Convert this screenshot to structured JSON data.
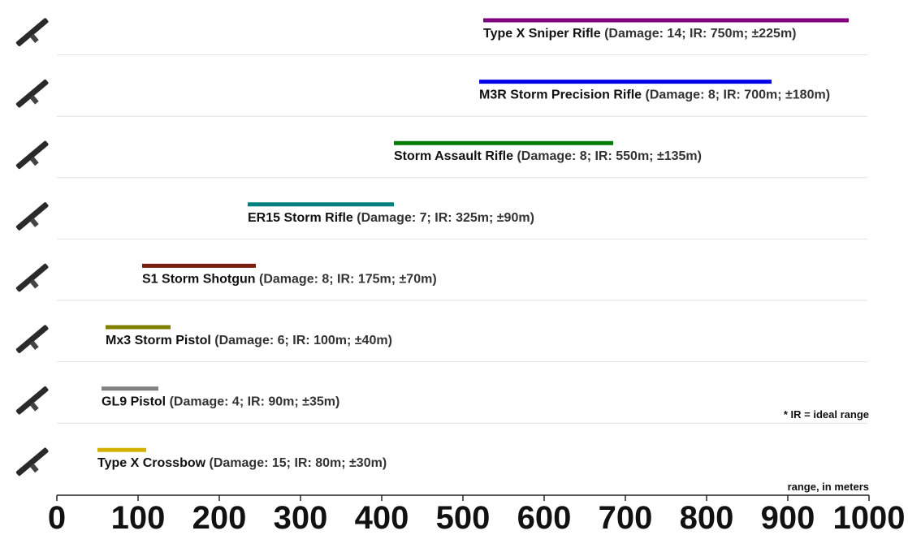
{
  "chart_data": {
    "type": "range",
    "note": "* IR = ideal range",
    "x_label": "range, in meters",
    "xlim": [
      0,
      1000
    ],
    "xticks": [
      0,
      100,
      200,
      300,
      400,
      500,
      600,
      700,
      800,
      900,
      1000
    ],
    "series": [
      {
        "name": "Type X Sniper Rifle",
        "details": "(Damage: 14; IR: 750m; ±225m)",
        "damage": 14,
        "ideal_range": 750,
        "spread": 225,
        "color": "#800080"
      },
      {
        "name": "M3R Storm Precision Rifle",
        "details": "(Damage: 8; IR: 700m; ±180m)",
        "damage": 8,
        "ideal_range": 700,
        "spread": 180,
        "color": "#0000e6"
      },
      {
        "name": "Storm Assault Rifle",
        "details": "(Damage: 8; IR: 550m; ±135m)",
        "damage": 8,
        "ideal_range": 550,
        "spread": 135,
        "color": "#007a00"
      },
      {
        "name": "ER15 Storm Rifle",
        "details": "(Damage: 7; IR: 325m; ±90m)",
        "damage": 7,
        "ideal_range": 325,
        "spread": 90,
        "color": "#008080"
      },
      {
        "name": "S1 Storm Shotgun",
        "details": "(Damage: 8; IR: 175m; ±70m)",
        "damage": 8,
        "ideal_range": 175,
        "spread": 70,
        "color": "#7a1f0f"
      },
      {
        "name": "Mx3 Storm Pistol",
        "details": "(Damage: 6; IR: 100m; ±40m)",
        "damage": 6,
        "ideal_range": 100,
        "spread": 40,
        "color": "#808000"
      },
      {
        "name": "GL9 Pistol",
        "details": "(Damage: 4; IR: 90m; ±35m)",
        "damage": 4,
        "ideal_range": 90,
        "spread": 35,
        "color": "#808080"
      },
      {
        "name": "Type X Crossbow",
        "details": "(Damage: 15; IR: 80m; ±30m)",
        "damage": 15,
        "ideal_range": 80,
        "spread": 30,
        "color": "#d4b000"
      }
    ]
  }
}
